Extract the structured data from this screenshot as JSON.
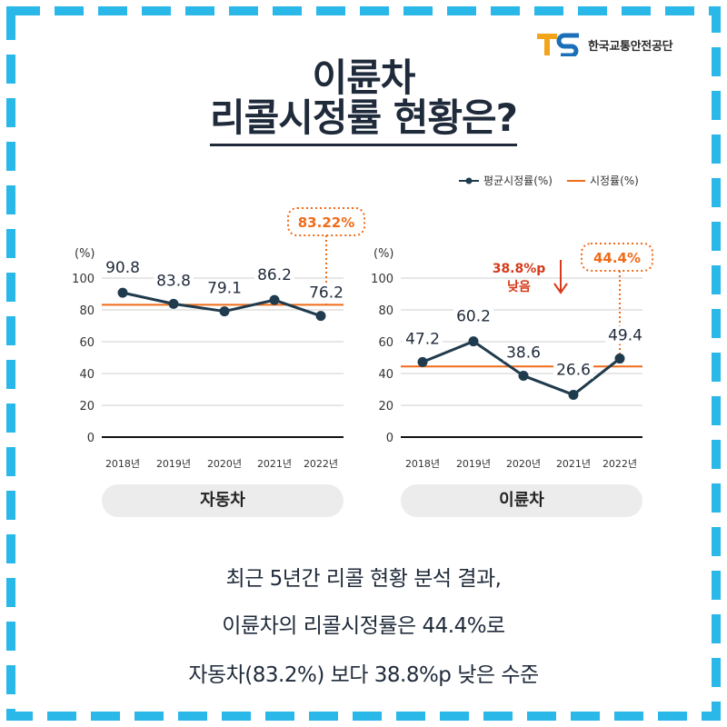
{
  "colors": {
    "border": "#2ab8e8",
    "navy": "#1f3b4d",
    "orange": "#ef6c1a",
    "grid": "#cfcfcf",
    "pill": "#ececec"
  },
  "logo": {
    "mark": "TS",
    "text": "한국교통안전공단"
  },
  "title": {
    "line1": "이륜차",
    "line2": "리콜시정률 현황은?"
  },
  "legend": {
    "series1": "평균시정률(%)",
    "series2": "시정률(%)"
  },
  "chart_data": [
    {
      "type": "line",
      "name": "자동차",
      "x": [
        "2018년",
        "2019년",
        "2020년",
        "2021년",
        "2022년"
      ],
      "series": [
        {
          "name": "평균시정률(%)",
          "values": [
            90.8,
            83.8,
            79.1,
            86.2,
            76.2
          ]
        },
        {
          "name": "시정률(%)",
          "values": [
            83.22,
            83.22,
            83.22,
            83.22,
            83.22
          ]
        }
      ],
      "ylabel": "(%)",
      "ylim": [
        0,
        100
      ],
      "yticks": [
        0,
        20,
        40,
        60,
        80,
        100
      ],
      "grid": true,
      "callout": "83.22%"
    },
    {
      "type": "line",
      "name": "이륜차",
      "x": [
        "2018년",
        "2019년",
        "2020년",
        "2021년",
        "2022년"
      ],
      "series": [
        {
          "name": "평균시정률(%)",
          "values": [
            47.2,
            60.2,
            38.6,
            26.6,
            49.4
          ]
        },
        {
          "name": "시정률(%)",
          "values": [
            44.4,
            44.4,
            44.4,
            44.4,
            44.4
          ]
        }
      ],
      "ylabel": "(%)",
      "ylim": [
        0,
        100
      ],
      "yticks": [
        0,
        20,
        40,
        60,
        80,
        100
      ],
      "grid": true,
      "callout": "44.4%",
      "note_line1": "38.8%p",
      "note_line2": "낮음"
    }
  ],
  "summary": {
    "line1": "최근 5년간 리콜 현황 분석 결과,",
    "line2": "이륜차의 리콜시정률은 44.4%로",
    "line3": "자동차(83.2%) 보다 38.8%p 낮은 수준"
  }
}
